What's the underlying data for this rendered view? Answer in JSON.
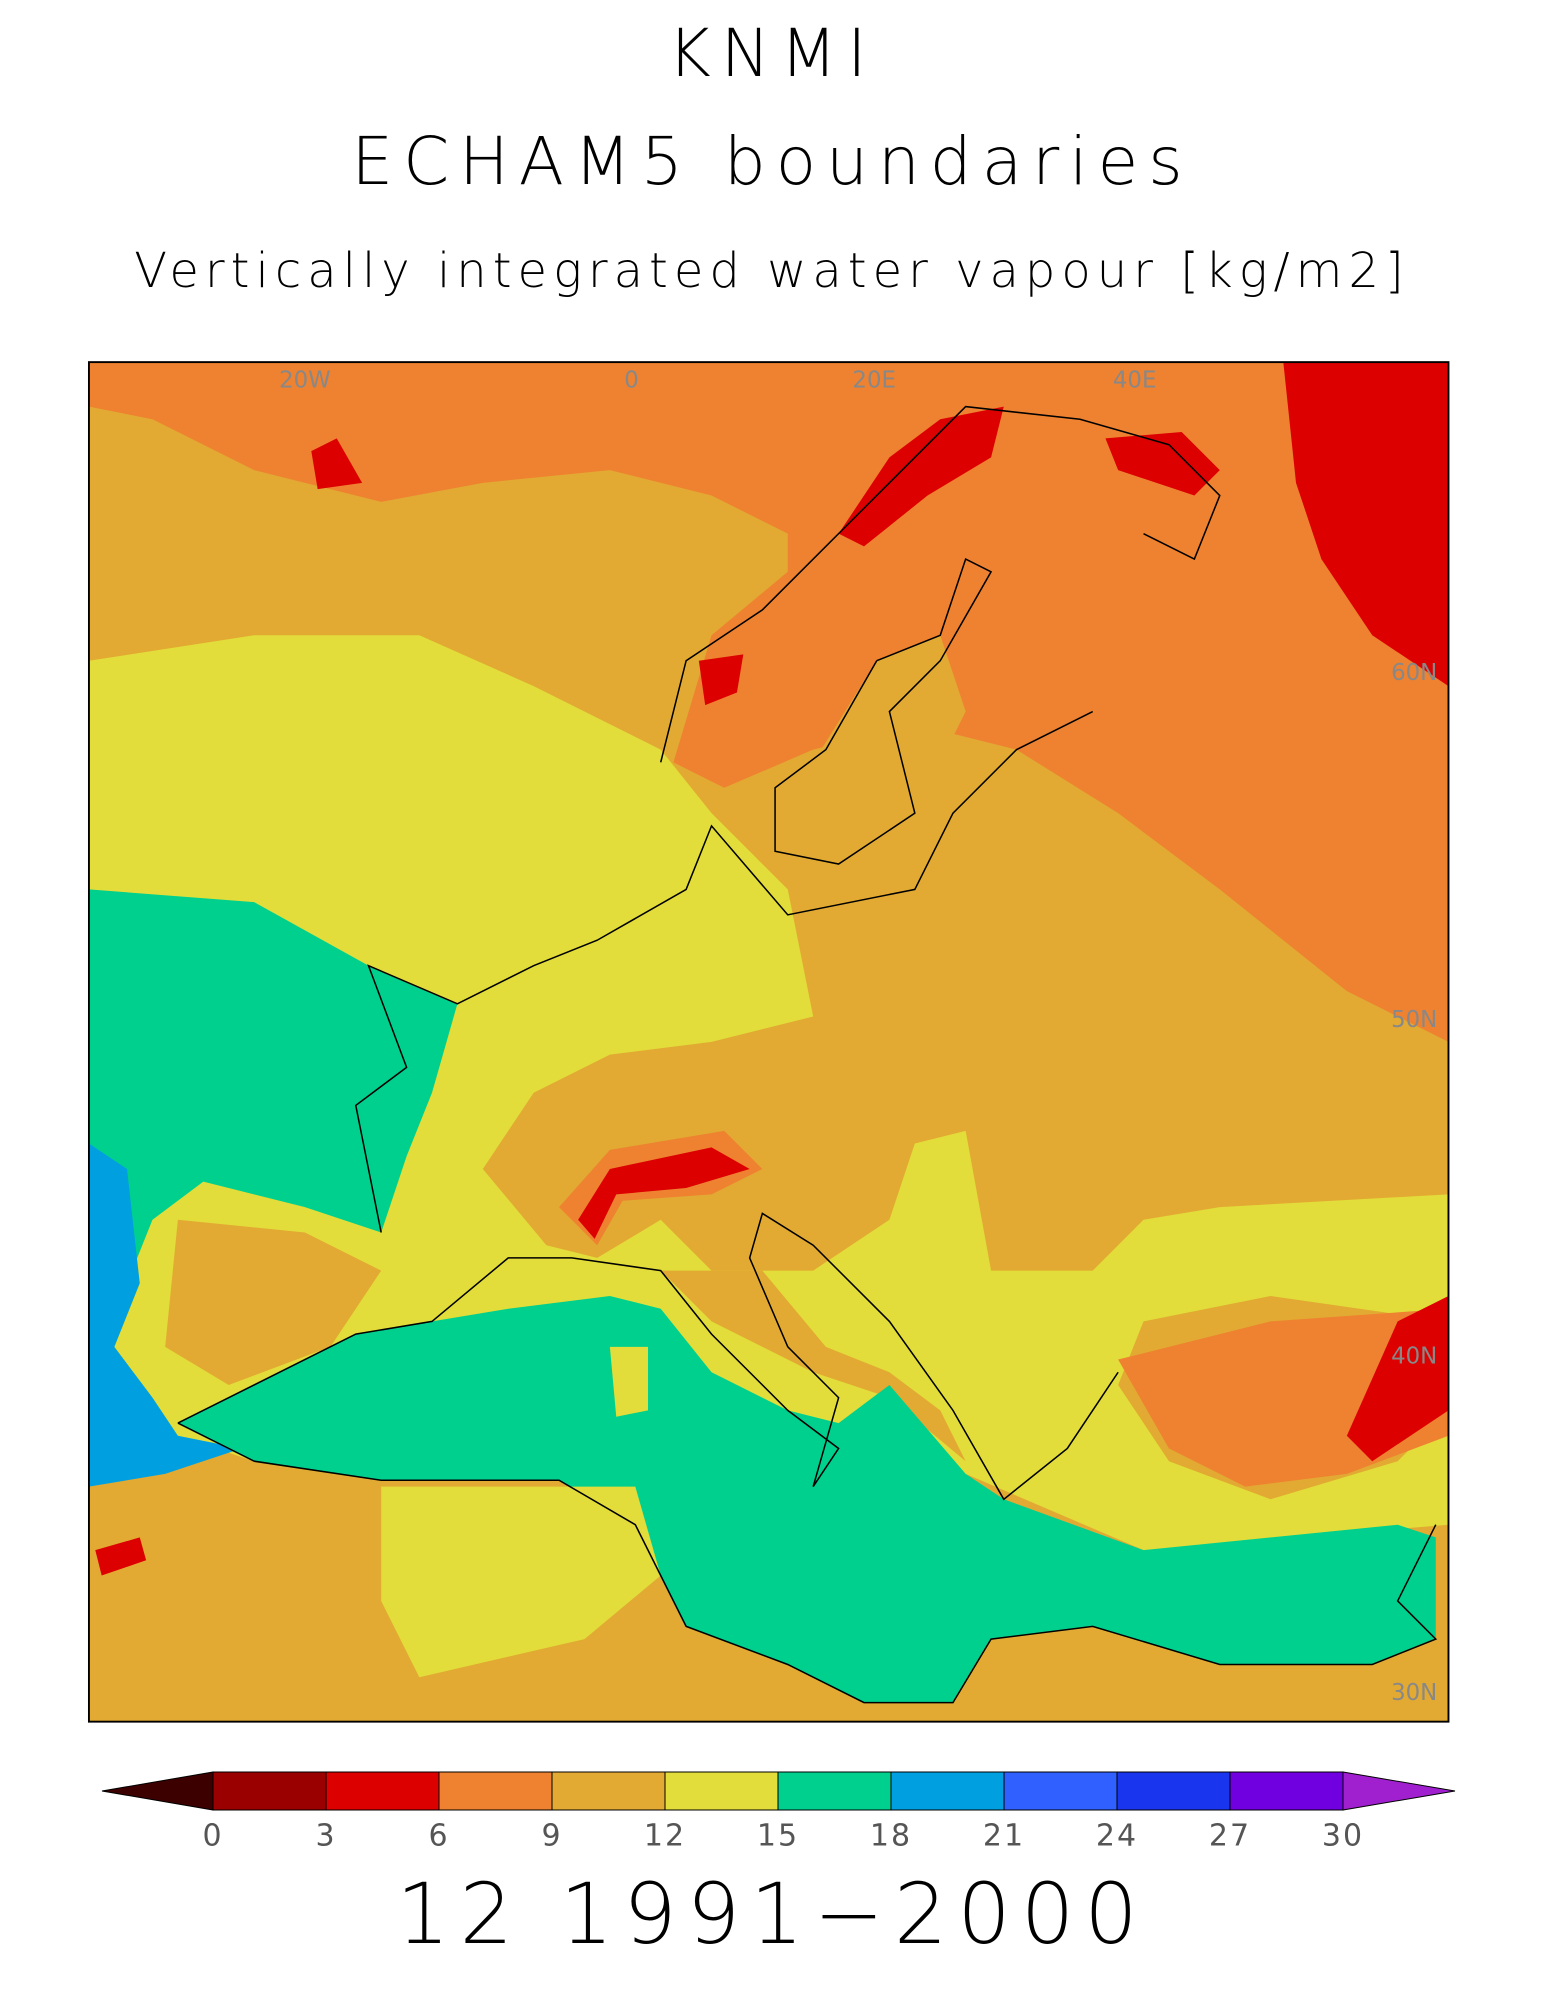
{
  "title": "KNMI",
  "subtitle": "ECHAM5 boundaries",
  "variable": "Vertically integrated water vapour [kg/m2]",
  "lon_labels": [
    "20W",
    "0",
    "20E",
    "40E"
  ],
  "lat_labels": [
    "60N",
    "50N",
    "40N",
    "30N"
  ],
  "colorbar": {
    "ticks": [
      0,
      3,
      6,
      9,
      12,
      15,
      18,
      21,
      24,
      27,
      30
    ],
    "under_color": "#3d0000",
    "colors": [
      "#9b0000",
      "#dd0000",
      "#ee8230",
      "#e2aa32",
      "#e2dd3a",
      "#00d08e",
      "#00a0e0",
      "#3060ff",
      "#1a35ee",
      "#7000e0"
    ],
    "over_color": "#a020d0"
  },
  "footer": "12 1991−2000"
}
